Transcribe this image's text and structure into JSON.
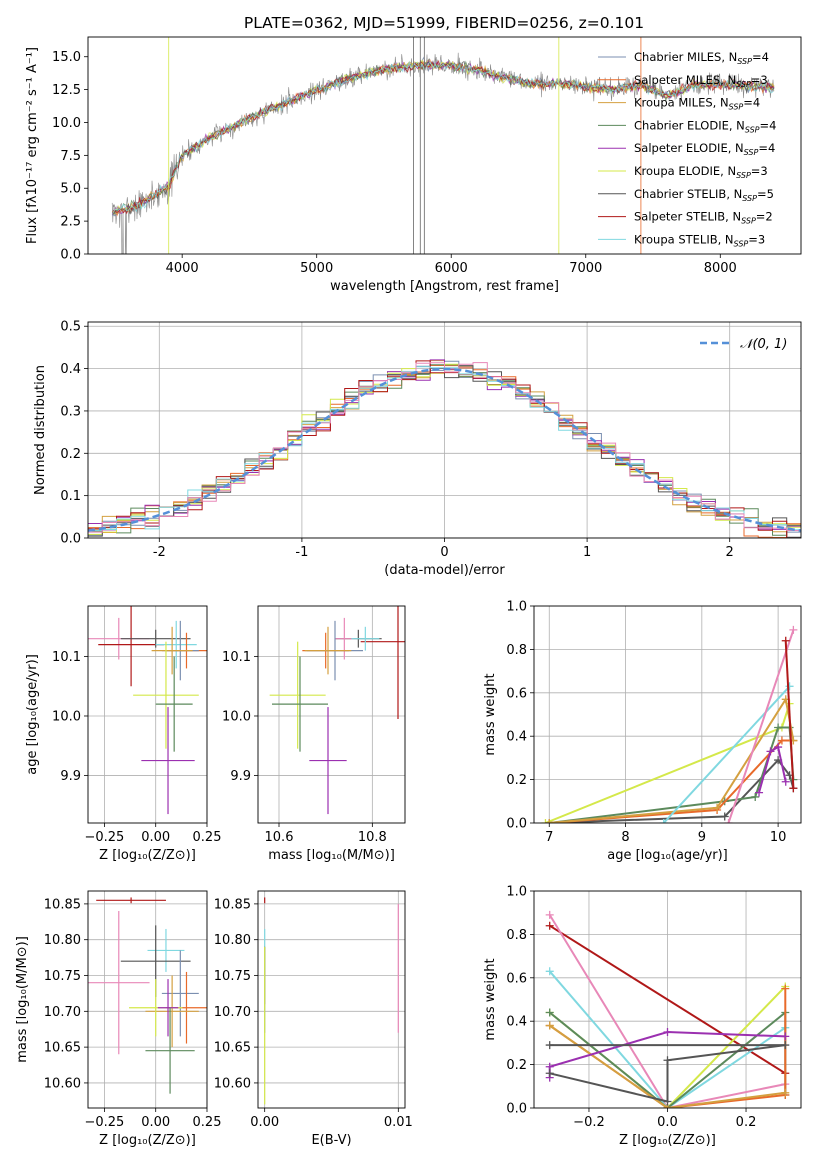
{
  "figure_title": "PLATE=0362, MJD=51999, FIBERID=0256, z=0.101",
  "colors": {
    "Chabrier MILES": "#7b8fb0",
    "Salpeter MILES": "#e86a2a",
    "Kroupa MILES": "#d4a040",
    "Chabrier ELODIE": "#5c8a5c",
    "Salpeter ELODIE": "#9b30b0",
    "Kroupa ELODIE": "#d4e84a",
    "Chabrier STELIB": "#555555",
    "Salpeter STELIB": "#b01818",
    "Kroupa STELIB": "#80d8e0",
    "pink": "#e888b8",
    "normal_curve": "#5590d8"
  },
  "legend_spectrum": [
    {
      "model": "Chabrier MILES",
      "n": "4"
    },
    {
      "model": "Salpeter MILES",
      "n": "3"
    },
    {
      "model": "Kroupa MILES",
      "n": "4"
    },
    {
      "model": "Chabrier ELODIE",
      "n": "4"
    },
    {
      "model": "Salpeter ELODIE",
      "n": "4"
    },
    {
      "model": "Kroupa ELODIE",
      "n": "3"
    },
    {
      "model": "Chabrier STELIB",
      "n": "5"
    },
    {
      "model": "Salpeter STELIB",
      "n": "2"
    },
    {
      "model": "Kroupa STELIB",
      "n": "3"
    }
  ],
  "legend_nssp_label": "N",
  "legend_nssp_sub": "SSP",
  "chart_data": [
    {
      "id": "spectrum",
      "type": "line",
      "title": "PLATE=0362, MJD=51999, FIBERID=0256, z=0.101",
      "xlabel": "wavelength [Angstrom, rest frame]",
      "ylabel": "Flux [fλ10⁻¹⁷ erg cm⁻² s⁻¹ A⁻¹]",
      "xlim": [
        3300,
        8600
      ],
      "ylim": [
        0,
        16.5
      ],
      "xticks": [
        4000,
        5000,
        6000,
        7000,
        8000
      ],
      "yticks": [
        0.0,
        2.5,
        5.0,
        7.5,
        10.0,
        12.5,
        15.0
      ],
      "continuum": {
        "x": [
          3500,
          3700,
          3900,
          4000,
          4200,
          4400,
          4600,
          4800,
          5000,
          5200,
          5400,
          5600,
          5800,
          6000,
          6200,
          6400,
          6600,
          6800,
          7000,
          7200,
          7400,
          7600,
          7800,
          8000,
          8200,
          8400
        ],
        "y": [
          3.2,
          3.8,
          5.2,
          7.5,
          8.8,
          9.8,
          10.8,
          11.6,
          12.5,
          13.2,
          13.8,
          14.2,
          14.4,
          14.3,
          14.0,
          13.4,
          12.9,
          13.0,
          12.7,
          12.5,
          12.9,
          12.0,
          12.8,
          12.9,
          12.8,
          12.6
        ]
      }
    },
    {
      "id": "residuals",
      "type": "step",
      "xlabel": "(data-model)/error",
      "ylabel": "Normed distribution",
      "xlim": [
        -2.5,
        2.5
      ],
      "ylim": [
        0,
        0.51
      ],
      "xticks": [
        -2,
        -1,
        0,
        1,
        2
      ],
      "yticks": [
        0.0,
        0.1,
        0.2,
        0.3,
        0.4,
        0.5
      ],
      "legend": "𝒩(0, 1)"
    },
    {
      "id": "age_vs_Z",
      "type": "errorbar",
      "xlabel": "Z [log₁₀(Z/Z⊙)]",
      "ylabel": "age  [log₁₀(age/yr)]",
      "xlim": [
        -0.33,
        0.25
      ],
      "ylim": [
        9.82,
        10.185
      ],
      "xticks": [
        -0.25,
        0.0,
        0.25
      ],
      "xticklabels": [
        "−0.25",
        "0.00",
        "0.25"
      ],
      "yticks": [
        9.9,
        10.0,
        10.1
      ],
      "points": [
        {
          "model": "pink",
          "x": -0.18,
          "xerr": 0.15,
          "y": 10.13,
          "yerr": 0.035
        },
        {
          "model": "Salpeter STELIB",
          "x": -0.12,
          "xerr": 0.16,
          "y": 10.12,
          "yerr": 0.07
        },
        {
          "model": "Chabrier STELIB",
          "x": 0.0,
          "xerr": 0.17,
          "y": 10.13,
          "yerr": 0.015
        },
        {
          "model": "Kroupa STELIB",
          "x": 0.1,
          "xerr": 0.1,
          "y": 10.12,
          "yerr": 0.04
        },
        {
          "model": "Salpeter MILES",
          "x": 0.15,
          "xerr": 0.1,
          "y": 10.11,
          "yerr": 0.03
        },
        {
          "model": "Chabrier MILES",
          "x": 0.12,
          "xerr": 0.09,
          "y": 10.11,
          "yerr": 0.05
        },
        {
          "model": "Kroupa MILES",
          "x": 0.08,
          "xerr": 0.1,
          "y": 10.11,
          "yerr": 0.04
        },
        {
          "model": "Kroupa ELODIE",
          "x": 0.05,
          "xerr": 0.16,
          "y": 10.035,
          "yerr": 0.09
        },
        {
          "model": "Chabrier ELODIE",
          "x": 0.09,
          "xerr": 0.09,
          "y": 10.02,
          "yerr": 0.08
        },
        {
          "model": "Salpeter ELODIE",
          "x": 0.06,
          "xerr": 0.13,
          "y": 9.925,
          "yerr": 0.09
        }
      ]
    },
    {
      "id": "age_vs_mass",
      "type": "errorbar",
      "xlabel": "mass [log₁₀(M/M⊙)]",
      "xlim": [
        10.555,
        10.87
      ],
      "ylim": [
        9.82,
        10.185
      ],
      "xticks": [
        10.6,
        10.8
      ],
      "yticks": [
        9.9,
        10.0,
        10.1
      ],
      "points": [
        {
          "model": "Salpeter STELIB",
          "x": 10.855,
          "xerr": 0.08,
          "y": 10.125,
          "yerr": 0.13
        },
        {
          "model": "Chabrier STELIB",
          "x": 10.77,
          "xerr": 0.05,
          "y": 10.13,
          "yerr": 0.015
        },
        {
          "model": "pink",
          "x": 10.74,
          "xerr": 0.02,
          "y": 10.13,
          "yerr": 0.035
        },
        {
          "model": "Kroupa STELIB",
          "x": 10.785,
          "xerr": 0.03,
          "y": 10.13,
          "yerr": 0.02
        },
        {
          "model": "Salpeter MILES",
          "x": 10.7,
          "xerr": 0.05,
          "y": 10.11,
          "yerr": 0.03
        },
        {
          "model": "Chabrier MILES",
          "x": 10.72,
          "xerr": 0.06,
          "y": 10.11,
          "yerr": 0.05
        },
        {
          "model": "Kroupa MILES",
          "x": 10.705,
          "xerr": 0.05,
          "y": 10.11,
          "yerr": 0.04
        },
        {
          "model": "Kroupa ELODIE",
          "x": 10.64,
          "xerr": 0.06,
          "y": 10.035,
          "yerr": 0.09
        },
        {
          "model": "Chabrier ELODIE",
          "x": 10.645,
          "xerr": 0.06,
          "y": 10.02,
          "yerr": 0.08
        },
        {
          "model": "Salpeter ELODIE",
          "x": 10.705,
          "xerr": 0.04,
          "y": 9.925,
          "yerr": 0.09
        }
      ]
    },
    {
      "id": "weight_vs_age",
      "type": "line",
      "xlabel": "age  [log₁₀(age/yr)]",
      "ylabel": "mass weight",
      "xlim": [
        6.8,
        10.3
      ],
      "ylim": [
        0,
        1.0
      ],
      "xticks": [
        7,
        8,
        9,
        10
      ],
      "yticks": [
        0.0,
        0.2,
        0.4,
        0.6,
        0.8,
        1.0
      ],
      "series": [
        {
          "model": "Kroupa ELODIE",
          "x": [
            6.95,
            10.05,
            10.15
          ],
          "y": [
            0.0,
            0.44,
            0.55
          ]
        },
        {
          "model": "Chabrier STELIB",
          "x": [
            7.0,
            9.3,
            10.0,
            10.15,
            10.2
          ],
          "y": [
            0.0,
            0.03,
            0.29,
            0.22,
            0.16
          ]
        },
        {
          "model": "Chabrier ELODIE",
          "x": [
            7.0,
            9.3,
            9.7,
            10.0,
            10.15,
            10.2
          ],
          "y": [
            0.0,
            0.1,
            0.12,
            0.44,
            0.44,
            0.2
          ]
        },
        {
          "model": "Salpeter MILES",
          "x": [
            7.0,
            9.2,
            10.05,
            10.2
          ],
          "y": [
            0.0,
            0.06,
            0.38,
            0.38
          ]
        },
        {
          "model": "Kroupa MILES",
          "x": [
            7.0,
            9.2,
            10.1,
            10.2
          ],
          "y": [
            0.0,
            0.07,
            0.57,
            0.38
          ]
        },
        {
          "model": "Kroupa STELIB",
          "x": [
            8.5,
            10.15
          ],
          "y": [
            0.0,
            0.63
          ]
        },
        {
          "model": "Salpeter ELODIE",
          "x": [
            9.75,
            9.9,
            10.0,
            10.1
          ],
          "y": [
            0.14,
            0.33,
            0.35,
            0.19
          ]
        },
        {
          "model": "pink",
          "x": [
            9.35,
            10.2
          ],
          "y": [
            0.0,
            0.89
          ]
        },
        {
          "model": "Salpeter STELIB",
          "x": [
            10.1,
            10.2
          ],
          "y": [
            0.84,
            0.16
          ]
        }
      ]
    },
    {
      "id": "mass_vs_Z",
      "type": "errorbar",
      "xlabel": "Z [log₁₀(Z/Z⊙)]",
      "ylabel": "mass [log₁₀(M/M⊙)]",
      "xlim": [
        -0.33,
        0.25
      ],
      "ylim": [
        10.565,
        10.868
      ],
      "xticks": [
        -0.25,
        0.0,
        0.25
      ],
      "xticklabels": [
        "−0.25",
        "0.00",
        "0.25"
      ],
      "yticks": [
        10.6,
        10.65,
        10.7,
        10.75,
        10.8,
        10.85
      ],
      "points": [
        {
          "model": "Salpeter STELIB",
          "x": -0.12,
          "xerr": 0.17,
          "y": 10.855,
          "yerr": 0.0
        },
        {
          "model": "pink",
          "x": -0.18,
          "xerr": 0.15,
          "y": 10.74,
          "yerr": 0.1
        },
        {
          "model": "Kroupa STELIB",
          "x": 0.05,
          "xerr": 0.09,
          "y": 10.785,
          "yerr": 0.03
        },
        {
          "model": "Chabrier STELIB",
          "x": 0.0,
          "xerr": 0.17,
          "y": 10.77,
          "yerr": 0.05
        },
        {
          "model": "Chabrier MILES",
          "x": 0.12,
          "xerr": 0.09,
          "y": 10.725,
          "yerr": 0.06
        },
        {
          "model": "Salpeter MILES",
          "x": 0.15,
          "xerr": 0.1,
          "y": 10.705,
          "yerr": 0.05
        },
        {
          "model": "Kroupa MILES",
          "x": 0.08,
          "xerr": 0.13,
          "y": 10.7,
          "yerr": 0.05
        },
        {
          "model": "Kroupa ELODIE",
          "x": 0.0,
          "xerr": 0.13,
          "y": 10.705,
          "yerr": 0.04
        },
        {
          "model": "Salpeter ELODIE",
          "x": 0.06,
          "xerr": 0.05,
          "y": 10.705,
          "yerr": 0.04
        },
        {
          "model": "Chabrier ELODIE",
          "x": 0.07,
          "xerr": 0.12,
          "y": 10.645,
          "yerr": 0.06
        }
      ]
    },
    {
      "id": "mass_vs_ebv",
      "type": "errorbar",
      "xlabel": "E(B-V)",
      "xlim": [
        -0.0005,
        0.0105
      ],
      "ylim": [
        10.565,
        10.868
      ],
      "xticks": [
        0.0,
        0.01
      ],
      "xticklabels": [
        "0.00",
        "0.01"
      ],
      "yticks": [
        10.6,
        10.65,
        10.7,
        10.75,
        10.8,
        10.85
      ],
      "points": [
        {
          "model": "Salpeter STELIB",
          "x": 0.0,
          "y": 10.855,
          "yerr": 0.0
        },
        {
          "model": "Kroupa STELIB",
          "x": 0.0,
          "y": 10.785,
          "yerr": 0.03
        },
        {
          "model": "Chabrier STELIB",
          "x": 0.0,
          "y": 10.75,
          "yerr": 0.04
        },
        {
          "model": "Chabrier MILES",
          "x": 0.0,
          "y": 10.73,
          "yerr": 0.06
        },
        {
          "model": "Kroupa ELODIE",
          "x": 0.0,
          "y": 10.68,
          "yerr": 0.11
        },
        {
          "model": "pink",
          "x": 0.01,
          "y": 10.76,
          "yerr": 0.09
        }
      ]
    },
    {
      "id": "weight_vs_Z",
      "type": "line",
      "xlabel": "Z [log₁₀(Z/Z⊙)]",
      "ylabel": "mass weight",
      "xlim": [
        -0.34,
        0.34
      ],
      "ylim": [
        0,
        1.0
      ],
      "xticks": [
        -0.2,
        0.0,
        0.2
      ],
      "xticklabels": [
        "−0.2",
        "0.0",
        "0.2"
      ],
      "yticks": [
        0.0,
        0.2,
        0.4,
        0.6,
        0.8,
        1.0
      ],
      "series": [
        {
          "model": "Salpeter STELIB",
          "x": [
            -0.3,
            0.3
          ],
          "y": [
            0.84,
            0.16
          ]
        },
        {
          "model": "pink",
          "x": [
            -0.3,
            0.0,
            0.3
          ],
          "y": [
            0.89,
            0.0,
            0.11
          ]
        },
        {
          "model": "Kroupa STELIB",
          "x": [
            -0.3,
            0.0,
            0.3
          ],
          "y": [
            0.63,
            0.0,
            0.37
          ]
        },
        {
          "model": "Kroupa ELODIE",
          "x": [
            -0.3,
            0.0,
            0.3
          ],
          "y": [
            0.44,
            0.0,
            0.56
          ]
        },
        {
          "model": "Chabrier ELODIE",
          "x": [
            -0.3,
            0.0,
            0.3,
            0.3
          ],
          "y": [
            0.44,
            0.0,
            0.44,
            0.06
          ]
        },
        {
          "model": "Salpeter MILES",
          "x": [
            -0.3,
            0.0,
            0.3,
            0.3
          ],
          "y": [
            0.38,
            0.0,
            0.06,
            0.55
          ]
        },
        {
          "model": "Kroupa MILES",
          "x": [
            -0.3,
            0.0,
            0.3
          ],
          "y": [
            0.38,
            0.0,
            0.07
          ]
        },
        {
          "model": "Salpeter ELODIE",
          "x": [
            -0.3,
            -0.3,
            0.0,
            0.3
          ],
          "y": [
            0.14,
            0.19,
            0.35,
            0.33
          ]
        },
        {
          "model": "Chabrier STELIB",
          "x": [
            -0.3,
            0.0,
            0.0,
            0.3,
            -0.3
          ],
          "y": [
            0.16,
            0.03,
            0.22,
            0.29,
            0.29
          ]
        }
      ]
    }
  ]
}
